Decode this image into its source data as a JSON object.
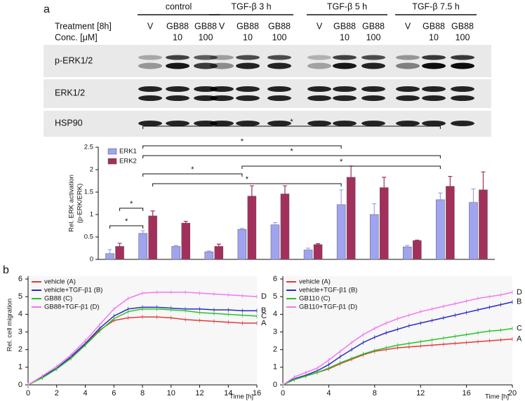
{
  "panel_labels": [
    "a",
    "b"
  ],
  "blot": {
    "groups": [
      "control",
      "TGF-β 3 h",
      "TGF-β 5 h",
      "TGF-β 7.5 h"
    ],
    "row_headers": [
      "Treatment [8h]",
      "Conc. [μM]"
    ],
    "treatment_row": [
      "V",
      "GB88",
      "GB88",
      "V",
      "GB88",
      "GB88",
      "V",
      "GB88",
      "GB88",
      "V",
      "GB88",
      "GB88"
    ],
    "conc_row": [
      null,
      "10",
      "100",
      null,
      "10",
      "100",
      null,
      "10",
      "100",
      null,
      "10",
      "100"
    ],
    "band_labels": [
      "p-ERK1/2",
      "ERK1/2",
      "HSP90"
    ]
  },
  "chart_data": [
    {
      "type": "bar",
      "ylabel": [
        "Rel. ERK activation",
        "(p-ERK/ERK)"
      ],
      "categories": [
        null,
        null,
        null,
        null,
        null,
        null,
        null,
        null,
        null,
        null,
        null,
        null
      ],
      "series": [
        {
          "name": "ERK1",
          "color": "#9fa3f0",
          "values": [
            0.13,
            0.58,
            0.29,
            0.17,
            0.67,
            0.77,
            0.21,
            1.22,
            1.0,
            0.28,
            1.33,
            1.27
          ],
          "errors": [
            0.09,
            0.06,
            0.02,
            0.02,
            0.02,
            0.05,
            0.04,
            0.33,
            0.24,
            0.03,
            0.15,
            0.3
          ]
        },
        {
          "name": "ERK2",
          "color": "#a3305c",
          "values": [
            0.29,
            0.97,
            0.81,
            0.29,
            1.41,
            1.46,
            0.33,
            1.83,
            1.6,
            0.42,
            1.63,
            1.55
          ],
          "errors": [
            0.07,
            0.11,
            0.04,
            0.05,
            0.23,
            0.18,
            0.02,
            0.25,
            0.23,
            0.01,
            0.22,
            0.4
          ]
        }
      ],
      "ylim": [
        0,
        2.5
      ],
      "yticks": [
        0,
        0.5,
        1,
        1.5,
        2,
        2.5
      ],
      "legend": "top-left",
      "annotations": [
        "*",
        "*",
        "*",
        "*",
        "*",
        "*",
        "*",
        "*"
      ]
    },
    {
      "type": "line",
      "xlabel": "Time [h]",
      "ylabel": "Rel. cell migration",
      "x": [
        0,
        1,
        2,
        3,
        4,
        5,
        6,
        7,
        8,
        9,
        10,
        11,
        12,
        13,
        14,
        15,
        16
      ],
      "series": [
        {
          "name": "vehicle (A)",
          "label": "A",
          "color": "#e23b3b",
          "values": [
            0,
            0.45,
            0.95,
            1.55,
            2.3,
            3.1,
            3.65,
            3.8,
            3.85,
            3.85,
            3.8,
            3.7,
            3.65,
            3.6,
            3.55,
            3.5,
            3.5
          ]
        },
        {
          "name": "vehicle+TGF-β1 (B)",
          "label": "B",
          "color": "#2a2ac4",
          "values": [
            0,
            0.45,
            0.95,
            1.6,
            2.35,
            3.2,
            3.9,
            4.3,
            4.4,
            4.4,
            4.35,
            4.3,
            4.3,
            4.25,
            4.25,
            4.2,
            4.2
          ]
        },
        {
          "name": "GB88 (C)",
          "label": "C",
          "color": "#27c227",
          "values": [
            0,
            0.4,
            0.9,
            1.5,
            2.25,
            3.05,
            3.75,
            4.15,
            4.3,
            4.3,
            4.25,
            4.2,
            4.1,
            4.05,
            4.0,
            3.95,
            3.9
          ]
        },
        {
          "name": "GB88+TGF-β1 (D)",
          "label": "D",
          "color": "#f277f2",
          "values": [
            0,
            0.5,
            1.05,
            1.7,
            2.5,
            3.4,
            4.3,
            4.9,
            5.2,
            5.25,
            5.25,
            5.25,
            5.2,
            5.15,
            5.1,
            5.05,
            5.0
          ]
        }
      ],
      "xlim": [
        0,
        16
      ],
      "xticks": [
        0,
        2,
        4,
        6,
        8,
        10,
        12,
        14,
        16
      ],
      "ylim": [
        0,
        6
      ],
      "yticks": [
        0,
        1,
        2,
        3,
        4,
        5,
        6
      ],
      "legend": "top-left"
    },
    {
      "type": "line",
      "xlabel": "Time [h]",
      "x": [
        0,
        1,
        2,
        3,
        4,
        5,
        6,
        7,
        8,
        9,
        10,
        11,
        12,
        13,
        14,
        15,
        16,
        17,
        18,
        19,
        20
      ],
      "series": [
        {
          "name": "vehicle (A)",
          "label": "A",
          "color": "#e23b3b",
          "values": [
            0,
            0.3,
            0.5,
            0.7,
            0.9,
            1.2,
            1.45,
            1.7,
            1.9,
            2.0,
            2.1,
            2.15,
            2.2,
            2.25,
            2.3,
            2.35,
            2.4,
            2.45,
            2.5,
            2.55,
            2.6
          ]
        },
        {
          "name": "vehicle+TGF-β1 (B)",
          "label": "B",
          "color": "#2a2ac4",
          "values": [
            0,
            0.35,
            0.55,
            0.8,
            1.15,
            1.6,
            2.0,
            2.4,
            2.7,
            2.95,
            3.15,
            3.35,
            3.5,
            3.65,
            3.8,
            3.95,
            4.1,
            4.25,
            4.4,
            4.55,
            4.7
          ]
        },
        {
          "name": "GB110 (C)",
          "label": "C",
          "color": "#27c227",
          "values": [
            0,
            0.3,
            0.5,
            0.7,
            0.95,
            1.25,
            1.5,
            1.75,
            1.95,
            2.1,
            2.25,
            2.35,
            2.45,
            2.55,
            2.65,
            2.75,
            2.85,
            2.95,
            3.05,
            3.1,
            3.2
          ]
        },
        {
          "name": "GB110+TGF-β1 (D)",
          "label": "D",
          "color": "#f277f2",
          "values": [
            0,
            0.45,
            0.7,
            0.95,
            1.4,
            1.9,
            2.4,
            2.85,
            3.2,
            3.5,
            3.75,
            3.95,
            4.15,
            4.3,
            4.45,
            4.6,
            4.75,
            4.9,
            5.0,
            5.1,
            5.25
          ]
        }
      ],
      "xlim": [
        0,
        20
      ],
      "xticks": [
        0,
        4,
        8,
        12,
        16,
        20
      ],
      "ylim": [
        0,
        6
      ],
      "yticks": [
        0,
        1,
        2,
        3,
        4,
        5,
        6
      ],
      "legend": "top-left"
    }
  ]
}
